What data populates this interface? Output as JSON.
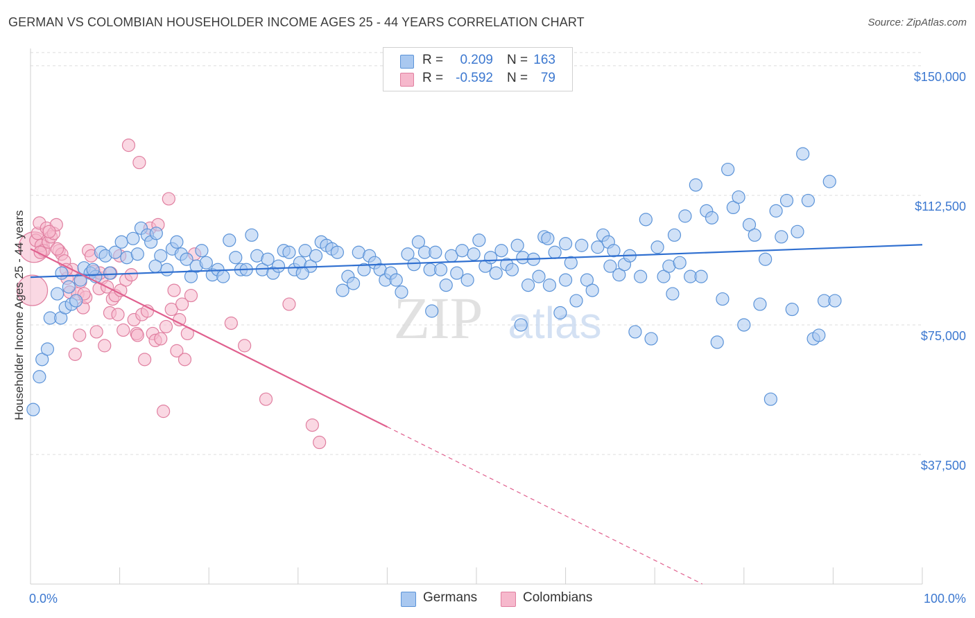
{
  "title": "GERMAN VS COLOMBIAN HOUSEHOLDER INCOME AGES 25 - 44 YEARS CORRELATION CHART",
  "source": "Source: ZipAtlas.com",
  "watermark": {
    "zip": "ZIP",
    "atlas": "atlas"
  },
  "legend": {
    "rows": [
      {
        "r_label": "R =",
        "r_value": "0.209",
        "n_label": "N =",
        "n_value": "163"
      },
      {
        "r_label": "R =",
        "r_value": "-0.592",
        "n_label": "N =",
        "n_value": "79"
      }
    ]
  },
  "bottom_legend": {
    "series1": "Germans",
    "series2": "Colombians"
  },
  "colors": {
    "blue_fill": "#a9c8f0",
    "blue_stroke": "#5b93d8",
    "blue_line": "#2f6fd0",
    "pink_fill": "#f6b8cc",
    "pink_stroke": "#e07fa0",
    "pink_line": "#e0608e",
    "tick_text": "#3c78d0",
    "grid": "#dcdcdc"
  },
  "chart_data": {
    "type": "scatter",
    "title": "GERMAN VS COLOMBIAN HOUSEHOLDER INCOME AGES 25 - 44 YEARS CORRELATION CHART",
    "xlabel": "",
    "ylabel": "Householder Income Ages 25 - 44 years",
    "xlim": [
      0,
      100
    ],
    "ylim": [
      0,
      155000
    ],
    "x_tick_labels": [
      "0.0%",
      "100.0%"
    ],
    "y_ticks": [
      {
        "value": 37500,
        "label": "$37,500"
      },
      {
        "value": 75000,
        "label": "$75,000"
      },
      {
        "value": 112500,
        "label": "$112,500"
      },
      {
        "value": 150000,
        "label": "$150,000"
      }
    ],
    "grid": true,
    "legend_position": "top-center",
    "series": [
      {
        "name": "Germans",
        "color": "#5b93d8",
        "trend": {
          "x": [
            0,
            100
          ],
          "y": [
            88800,
            98200
          ]
        },
        "points": [
          [
            0.3,
            50500
          ],
          [
            1.0,
            60000
          ],
          [
            1.3,
            65000
          ],
          [
            1.9,
            68000
          ],
          [
            2.2,
            77000
          ],
          [
            3.0,
            84000
          ],
          [
            3.4,
            77000
          ],
          [
            3.9,
            80000
          ],
          [
            4.3,
            86000
          ],
          [
            4.6,
            81000
          ],
          [
            5.1,
            82000
          ],
          [
            5.6,
            88000
          ],
          [
            6.0,
            91500
          ],
          [
            6.7,
            90000
          ],
          [
            7.3,
            89000
          ],
          [
            7.9,
            96000
          ],
          [
            8.4,
            95000
          ],
          [
            8.9,
            90000
          ],
          [
            9.5,
            96000
          ],
          [
            10.2,
            99000
          ],
          [
            10.8,
            94500
          ],
          [
            11.5,
            100000
          ],
          [
            12.0,
            95500
          ],
          [
            12.4,
            103000
          ],
          [
            13.1,
            101000
          ],
          [
            13.5,
            99000
          ],
          [
            14.1,
            101500
          ],
          [
            14.6,
            95000
          ],
          [
            15.3,
            91000
          ],
          [
            15.9,
            97000
          ],
          [
            16.4,
            99000
          ],
          [
            16.9,
            95500
          ],
          [
            17.5,
            94000
          ],
          [
            18.0,
            89000
          ],
          [
            18.6,
            92000
          ],
          [
            19.2,
            96500
          ],
          [
            19.7,
            93000
          ],
          [
            20.4,
            89500
          ],
          [
            21.0,
            91000
          ],
          [
            21.6,
            89000
          ],
          [
            22.3,
            99500
          ],
          [
            23.0,
            94500
          ],
          [
            23.6,
            91000
          ],
          [
            24.2,
            91000
          ],
          [
            24.8,
            101000
          ],
          [
            25.4,
            95000
          ],
          [
            26.0,
            91000
          ],
          [
            26.6,
            94000
          ],
          [
            27.2,
            90000
          ],
          [
            27.8,
            92000
          ],
          [
            28.4,
            96500
          ],
          [
            29.0,
            96000
          ],
          [
            29.6,
            91000
          ],
          [
            30.2,
            93000
          ],
          [
            30.8,
            96500
          ],
          [
            31.4,
            92000
          ],
          [
            32.0,
            95000
          ],
          [
            32.6,
            99000
          ],
          [
            33.2,
            98000
          ],
          [
            33.8,
            97000
          ],
          [
            34.4,
            96000
          ],
          [
            35.0,
            85000
          ],
          [
            35.6,
            89000
          ],
          [
            36.2,
            87000
          ],
          [
            36.8,
            96000
          ],
          [
            37.4,
            91000
          ],
          [
            38.0,
            95000
          ],
          [
            38.6,
            93000
          ],
          [
            39.2,
            91000
          ],
          [
            39.8,
            88000
          ],
          [
            40.4,
            90000
          ],
          [
            41.0,
            88000
          ],
          [
            41.6,
            84500
          ],
          [
            42.3,
            95500
          ],
          [
            43.0,
            92500
          ],
          [
            43.5,
            99000
          ],
          [
            44.2,
            96000
          ],
          [
            44.8,
            91000
          ],
          [
            45.4,
            96000
          ],
          [
            46.0,
            91000
          ],
          [
            46.6,
            86500
          ],
          [
            47.2,
            95000
          ],
          [
            47.8,
            90000
          ],
          [
            48.4,
            96500
          ],
          [
            49.0,
            88000
          ],
          [
            49.7,
            95500
          ],
          [
            50.3,
            99500
          ],
          [
            51.0,
            92000
          ],
          [
            51.6,
            94500
          ],
          [
            52.2,
            90000
          ],
          [
            52.8,
            96500
          ],
          [
            53.4,
            92500
          ],
          [
            54.0,
            91000
          ],
          [
            54.6,
            98000
          ],
          [
            55.2,
            94500
          ],
          [
            55.8,
            86500
          ],
          [
            56.4,
            94000
          ],
          [
            57.0,
            89000
          ],
          [
            57.6,
            100500
          ],
          [
            58.2,
            86500
          ],
          [
            58.8,
            96000
          ],
          [
            59.4,
            78500
          ],
          [
            60.0,
            88000
          ],
          [
            60.6,
            93000
          ],
          [
            61.2,
            82000
          ],
          [
            61.8,
            98000
          ],
          [
            62.4,
            88000
          ],
          [
            63.0,
            85000
          ],
          [
            63.6,
            97500
          ],
          [
            64.2,
            101000
          ],
          [
            64.8,
            99000
          ],
          [
            65.4,
            96500
          ],
          [
            66.0,
            89500
          ],
          [
            66.6,
            92500
          ],
          [
            67.2,
            95000
          ],
          [
            67.8,
            73000
          ],
          [
            68.4,
            89000
          ],
          [
            69.0,
            105500
          ],
          [
            69.6,
            71000
          ],
          [
            70.3,
            97500
          ],
          [
            71.0,
            89000
          ],
          [
            71.6,
            92000
          ],
          [
            72.2,
            101000
          ],
          [
            72.8,
            93000
          ],
          [
            73.4,
            106500
          ],
          [
            74.0,
            89000
          ],
          [
            74.6,
            115500
          ],
          [
            75.2,
            89000
          ],
          [
            75.8,
            108000
          ],
          [
            76.4,
            106000
          ],
          [
            77.0,
            70000
          ],
          [
            77.6,
            82500
          ],
          [
            78.2,
            120000
          ],
          [
            78.8,
            109000
          ],
          [
            79.4,
            112000
          ],
          [
            80.0,
            75000
          ],
          [
            80.6,
            104000
          ],
          [
            81.2,
            101000
          ],
          [
            81.8,
            81000
          ],
          [
            82.4,
            94000
          ],
          [
            83.0,
            53500
          ],
          [
            83.6,
            108000
          ],
          [
            84.2,
            100500
          ],
          [
            84.8,
            111000
          ],
          [
            85.4,
            79500
          ],
          [
            86.0,
            102000
          ],
          [
            86.6,
            124500
          ],
          [
            87.2,
            111000
          ],
          [
            87.8,
            71000
          ],
          [
            88.4,
            72000
          ],
          [
            89.0,
            82000
          ],
          [
            89.6,
            116500
          ],
          [
            90.2,
            82000
          ],
          [
            55.0,
            75000
          ],
          [
            45.0,
            79000
          ],
          [
            30.5,
            90000
          ],
          [
            14.0,
            92000
          ],
          [
            7.0,
            91000
          ],
          [
            3.5,
            90000
          ],
          [
            60.0,
            98500
          ],
          [
            72.0,
            84000
          ],
          [
            58.0,
            100000
          ],
          [
            65.0,
            92000
          ]
        ]
      },
      {
        "name": "Colombians",
        "color": "#e07fa0",
        "trend": {
          "x": [
            0,
            40
          ],
          "y": [
            97000,
            45500
          ]
        },
        "points": [
          [
            0.2,
            85000
          ],
          [
            0.4,
            97500
          ],
          [
            0.6,
            99500
          ],
          [
            0.8,
            101500
          ],
          [
            1.0,
            104500
          ],
          [
            1.2,
            98000
          ],
          [
            1.5,
            96500
          ],
          [
            1.8,
            103000
          ],
          [
            2.0,
            99000
          ],
          [
            2.3,
            100500
          ],
          [
            2.6,
            101500
          ],
          [
            2.9,
            104000
          ],
          [
            3.2,
            96500
          ],
          [
            3.5,
            95500
          ],
          [
            3.8,
            93500
          ],
          [
            4.1,
            88500
          ],
          [
            4.4,
            84500
          ],
          [
            4.7,
            91000
          ],
          [
            5.0,
            66500
          ],
          [
            5.3,
            84000
          ],
          [
            5.6,
            87500
          ],
          [
            5.9,
            80000
          ],
          [
            6.2,
            83000
          ],
          [
            6.5,
            96500
          ],
          [
            6.8,
            95000
          ],
          [
            7.1,
            90500
          ],
          [
            7.4,
            73000
          ],
          [
            7.7,
            85500
          ],
          [
            8.0,
            88500
          ],
          [
            8.3,
            69000
          ],
          [
            8.6,
            86000
          ],
          [
            8.9,
            78500
          ],
          [
            9.2,
            82500
          ],
          [
            9.5,
            83500
          ],
          [
            9.8,
            78000
          ],
          [
            10.1,
            85000
          ],
          [
            10.4,
            73500
          ],
          [
            10.7,
            88000
          ],
          [
            11.0,
            127000
          ],
          [
            11.3,
            89500
          ],
          [
            11.6,
            76500
          ],
          [
            11.9,
            72500
          ],
          [
            12.2,
            122000
          ],
          [
            12.5,
            78000
          ],
          [
            12.8,
            65000
          ],
          [
            13.1,
            79000
          ],
          [
            13.4,
            103000
          ],
          [
            13.7,
            72500
          ],
          [
            14.0,
            70500
          ],
          [
            14.3,
            104000
          ],
          [
            14.6,
            71000
          ],
          [
            14.9,
            50000
          ],
          [
            15.2,
            74500
          ],
          [
            15.5,
            111500
          ],
          [
            15.8,
            79500
          ],
          [
            16.1,
            85000
          ],
          [
            16.4,
            67500
          ],
          [
            16.7,
            76500
          ],
          [
            17.0,
            81000
          ],
          [
            17.3,
            65000
          ],
          [
            17.6,
            72500
          ],
          [
            18.0,
            83500
          ],
          [
            18.4,
            95500
          ],
          [
            22.5,
            75500
          ],
          [
            24.0,
            69000
          ],
          [
            26.4,
            53500
          ],
          [
            29.0,
            81000
          ],
          [
            31.6,
            46000
          ],
          [
            32.4,
            41000
          ],
          [
            1.1,
            96000
          ],
          [
            2.1,
            102000
          ],
          [
            3.0,
            97000
          ],
          [
            4.0,
            91000
          ],
          [
            5.5,
            72000
          ],
          [
            6.0,
            84000
          ],
          [
            7.8,
            90000
          ],
          [
            9.0,
            90000
          ],
          [
            10.0,
            95000
          ],
          [
            12.0,
            72000
          ]
        ]
      }
    ]
  }
}
